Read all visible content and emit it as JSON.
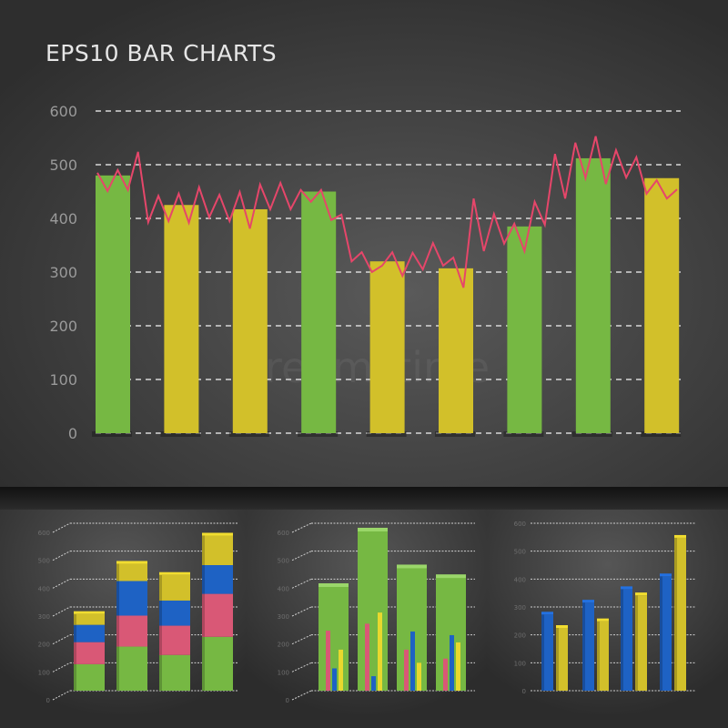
{
  "title": "EPS10 BAR CHARTS",
  "watermark": "dreamstime",
  "colors": {
    "green": "#76b843",
    "yellow": "#d2c02a",
    "pink": "#d95876",
    "blue": "#1e62c4",
    "line": "#e6466a",
    "bright_yellow": "#e8d82e"
  },
  "chart_data": [
    {
      "type": "bar",
      "title": "EPS10 BAR CHARTS",
      "ylim": [
        0,
        600
      ],
      "yticks": [
        "0",
        "100",
        "200",
        "300",
        "400",
        "500",
        "600"
      ],
      "grid": true,
      "values": [
        480,
        425,
        417,
        450,
        320,
        307,
        385,
        512,
        475
      ],
      "bar_colors": [
        "green",
        "yellow",
        "yellow",
        "green",
        "yellow",
        "yellow",
        "green",
        "green",
        "yellow"
      ],
      "line_overlay": [
        485,
        451,
        490,
        453,
        524,
        393,
        442,
        395,
        446,
        392,
        458,
        402,
        444,
        395,
        449,
        381,
        463,
        417,
        466,
        417,
        453,
        431,
        453,
        397,
        407,
        320,
        337,
        300,
        312,
        337,
        293,
        336,
        305,
        354,
        312,
        327,
        271,
        437,
        339,
        408,
        353,
        390,
        339,
        431,
        388,
        520,
        437,
        541,
        475,
        553,
        464,
        527,
        476,
        514,
        446,
        471,
        437,
        454
      ]
    },
    {
      "type": "bar",
      "stacked": true,
      "ylim": [
        0,
        600
      ],
      "yticks": [
        "0",
        "100",
        "200",
        "300",
        "400",
        "500",
        "600"
      ],
      "series": [
        {
          "color": "green",
          "values": [
            95,
            158,
            128,
            193
          ]
        },
        {
          "color": "pink",
          "values": [
            79,
            111,
            105,
            154
          ]
        },
        {
          "color": "blue",
          "values": [
            62,
            124,
            90,
            103
          ]
        },
        {
          "color": "yellow",
          "values": [
            39,
            62,
            92,
            106
          ]
        }
      ]
    },
    {
      "type": "bar",
      "ylim": [
        0,
        600
      ],
      "yticks": [
        "0",
        "100",
        "200",
        "300",
        "400",
        "500",
        "600"
      ],
      "background_values": [
        375,
        574,
        442,
        407
      ],
      "series": [
        {
          "color": "pink",
          "values": [
            215,
            240,
            147,
            115
          ]
        },
        {
          "color": "blue",
          "values": [
            80,
            52,
            212,
            199
          ]
        },
        {
          "color": "yellow",
          "values": [
            147,
            280,
            100,
            173
          ]
        }
      ]
    },
    {
      "type": "bar",
      "ylim": [
        0,
        600
      ],
      "yticks": [
        "0",
        "100",
        "200",
        "300",
        "400",
        "500",
        "600"
      ],
      "series": [
        {
          "color": "blue",
          "values": [
            273,
            316,
            364,
            410
          ]
        },
        {
          "color": "yellow",
          "values": [
            225,
            249,
            342,
            548
          ]
        }
      ]
    }
  ]
}
